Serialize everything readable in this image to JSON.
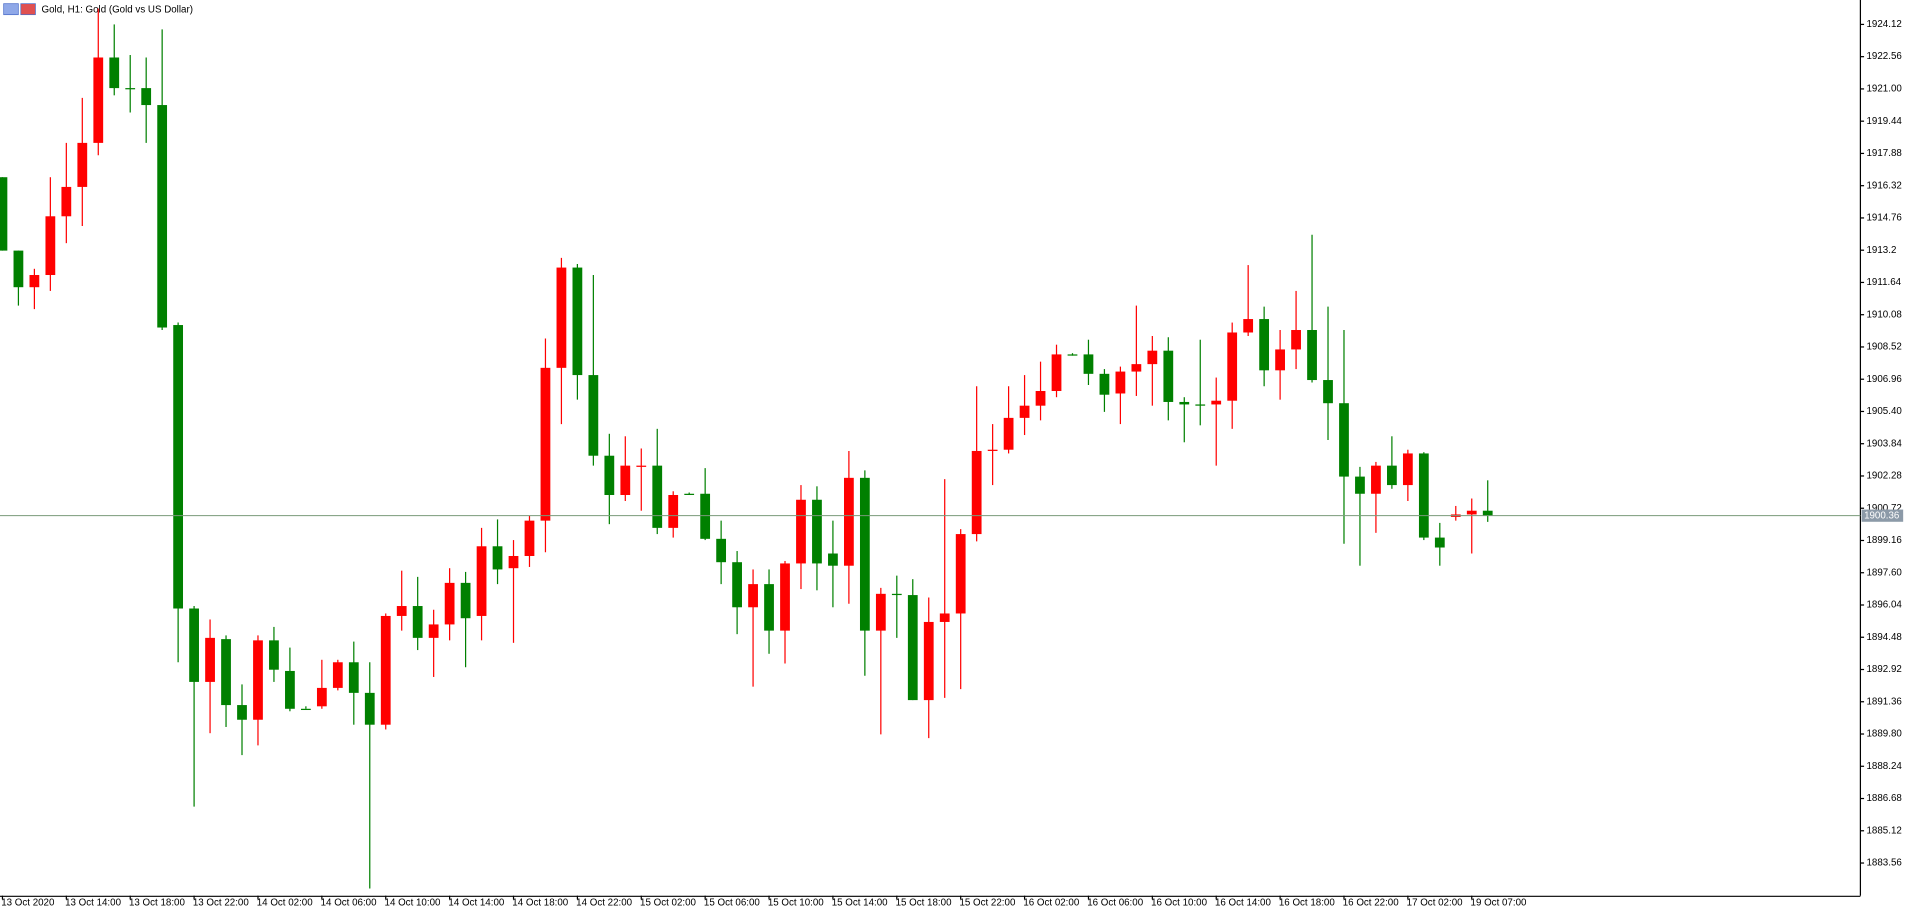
{
  "chart_data": {
    "type": "candlestick",
    "title": "Gold, H1:  Gold (Gold vs US Dollar)",
    "categories": [
      "13 Oct 2020",
      null,
      null,
      null,
      "13 Oct 14:00",
      null,
      null,
      null,
      "13 Oct 18:00",
      null,
      null,
      null,
      "13 Oct 22:00",
      null,
      null,
      null,
      "14 Oct 02:00",
      null,
      null,
      null,
      "14 Oct 06:00",
      null,
      null,
      null,
      "14 Oct 10:00",
      null,
      null,
      null,
      "14 Oct 14:00",
      null,
      null,
      null,
      "14 Oct 18:00",
      null,
      null,
      null,
      "14 Oct 22:00",
      null,
      null,
      null,
      "15 Oct 02:00",
      null,
      null,
      null,
      "15 Oct 06:00",
      null,
      null,
      null,
      "15 Oct 10:00",
      null,
      null,
      null,
      "15 Oct 14:00",
      null,
      null,
      null,
      "15 Oct 18:00",
      null,
      null,
      null,
      "15 Oct 22:00",
      null,
      null,
      null,
      "16 Oct 02:00",
      null,
      null,
      null,
      "16 Oct 06:00",
      null,
      null,
      null,
      "16 Oct 10:00",
      null,
      null,
      null,
      "16 Oct 14:00",
      null,
      null,
      null,
      "16 Oct 18:00",
      null,
      null,
      null,
      "16 Oct 22:00",
      null,
      null,
      null,
      "17 Oct 02:00",
      null,
      null,
      null,
      "19 Oct 07:00",
      null
    ],
    "open": [
      1916.73,
      1913.18,
      1911.41,
      1912.0,
      1914.84,
      1916.26,
      1918.39,
      1922.52,
      1921.04,
      1921.04,
      1920.22,
      1909.58,
      1895.87,
      1892.32,
      1894.39,
      1891.2,
      1890.49,
      1894.33,
      1892.85,
      1891.02,
      1891.14,
      1892.03,
      1893.27,
      1891.79,
      1890.25,
      1895.51,
      1895.99,
      1894.45,
      1895.1,
      1897.11,
      1895.51,
      1898.88,
      1897.82,
      1898.41,
      1900.12,
      1907.51,
      1912.36,
      1907.16,
      1903.26,
      1901.36,
      1902.72,
      1902.78,
      1899.77,
      1901.42,
      1901.42,
      1899.24,
      1898.11,
      1895.93,
      1897.05,
      1894.8,
      1898.05,
      1901.13,
      1898.53,
      1897.94,
      1902.19,
      1894.8,
      1896.58,
      1896.52,
      1891.44,
      1895.22,
      1895.63,
      1899.47,
      1903.49,
      1903.55,
      1905.09,
      1905.68,
      1906.39,
      1908.16,
      1908.16,
      1907.22,
      1906.27,
      1907.33,
      1907.69,
      1908.34,
      1905.86,
      1905.74,
      1905.74,
      1905.92,
      1909.22,
      1909.87,
      1907.39,
      1908.4,
      1909.34,
      1906.92,
      1905.8,
      1902.25,
      1901.42,
      1902.78,
      1901.84,
      1903.37,
      1899.3,
      1900.3,
      1900.42,
      1900.6
    ],
    "high": [
      1916.73,
      1913.18,
      1912.3,
      1916.73,
      1918.39,
      1920.57,
      1924.89,
      1924.12,
      1922.64,
      1922.52,
      1923.88,
      1909.7,
      1895.99,
      1895.34,
      1894.57,
      1892.2,
      1894.57,
      1894.98,
      1893.98,
      1891.14,
      1893.39,
      1893.39,
      1894.27,
      1893.27,
      1895.63,
      1897.7,
      1897.4,
      1895.81,
      1897.82,
      1897.64,
      1899.77,
      1900.18,
      1899.18,
      1900.36,
      1908.93,
      1912.83,
      1912.53,
      1912.0,
      1904.32,
      1904.2,
      1903.61,
      1904.56,
      1901.54,
      1901.48,
      1902.66,
      1900.12,
      1898.65,
      1897.76,
      1897.76,
      1898.17,
      1901.84,
      1901.78,
      1900.12,
      1903.49,
      1902.55,
      1896.87,
      1897.46,
      1897.29,
      1896.4,
      1902.13,
      1899.71,
      1906.62,
      1904.79,
      1906.62,
      1907.16,
      1907.81,
      1908.63,
      1908.22,
      1908.87,
      1907.45,
      1907.57,
      1910.52,
      1909.05,
      1908.99,
      1906.09,
      1908.87,
      1907.04,
      1909.7,
      1912.48,
      1910.47,
      1909.34,
      1911.23,
      1913.95,
      1910.47,
      1909.34,
      1902.72,
      1902.96,
      1904.2,
      1903.55,
      1903.43,
      1900.01,
      1900.83,
      1901.19,
      1902.07
    ],
    "low": [
      1913.18,
      1910.52,
      1910.35,
      1911.23,
      1913.54,
      1914.37,
      1917.79,
      1920.69,
      1919.86,
      1918.39,
      1909.34,
      1893.27,
      1886.29,
      1889.84,
      1890.14,
      1888.78,
      1889.25,
      1892.32,
      1890.9,
      1891.02,
      1891.02,
      1891.91,
      1890.25,
      1882.33,
      1890.02,
      1894.8,
      1893.86,
      1892.56,
      1894.33,
      1893.03,
      1894.33,
      1897.05,
      1894.21,
      1897.88,
      1898.59,
      1904.79,
      1905.97,
      1902.78,
      1899.95,
      1901.07,
      1900.6,
      1899.47,
      1899.3,
      1901.36,
      1899.18,
      1897.05,
      1894.63,
      1892.09,
      1893.68,
      1893.21,
      1896.81,
      1896.75,
      1895.93,
      1896.1,
      1892.62,
      1889.78,
      1894.45,
      1891.44,
      1889.6,
      1891.55,
      1891.97,
      1899.12,
      1901.84,
      1903.37,
      1904.26,
      1904.97,
      1906.09,
      1908.1,
      1906.68,
      1905.38,
      1904.79,
      1906.15,
      1905.68,
      1904.97,
      1903.91,
      1904.73,
      1902.78,
      1904.56,
      1909.05,
      1906.62,
      1905.97,
      1907.45,
      1906.8,
      1904.02,
      1899.0,
      1897.94,
      1899.53,
      1901.66,
      1901.07,
      1899.18,
      1897.94,
      1900.12,
      1898.53,
      1900.06
    ],
    "close": [
      1913.18,
      1911.41,
      1912.0,
      1914.84,
      1916.26,
      1918.39,
      1922.52,
      1921.04,
      1920.99,
      1920.22,
      1909.46,
      1895.87,
      1892.32,
      1894.45,
      1891.2,
      1890.49,
      1894.33,
      1892.91,
      1891.02,
      1891.02,
      1892.03,
      1893.27,
      1891.79,
      1890.25,
      1895.51,
      1895.99,
      1894.45,
      1895.1,
      1897.11,
      1895.4,
      1898.88,
      1897.76,
      1898.41,
      1900.12,
      1907.51,
      1912.36,
      1907.16,
      1903.26,
      1901.36,
      1902.78,
      1902.78,
      1899.77,
      1901.36,
      1901.42,
      1899.24,
      1898.11,
      1895.93,
      1897.05,
      1894.8,
      1898.05,
      1901.13,
      1898.05,
      1897.94,
      1902.19,
      1894.8,
      1896.58,
      1896.52,
      1891.44,
      1895.22,
      1895.63,
      1899.47,
      1903.49,
      1903.55,
      1905.09,
      1905.68,
      1906.39,
      1908.16,
      1908.16,
      1907.22,
      1906.21,
      1907.33,
      1907.69,
      1908.34,
      1905.86,
      1905.74,
      1905.68,
      1905.92,
      1909.22,
      1909.87,
      1907.39,
      1908.4,
      1909.34,
      1906.92,
      1905.8,
      1902.25,
      1901.42,
      1902.78,
      1901.84,
      1903.37,
      1899.3,
      1898.82,
      1900.42,
      1900.6,
      1900.36
    ],
    "up_color": "#ff0000",
    "down_color": "#008000",
    "price_line": 1900.36,
    "ylim": [
      1881.98,
      1925.3
    ],
    "yticks": [
      1924.12,
      1922.56,
      {
        "value": 1921,
        "label": "1921.00"
      },
      1919.44,
      1917.88,
      1916.32,
      1914.76,
      1913.2,
      1911.64,
      1910.08,
      1908.52,
      1906.96,
      {
        "value": 1905.4,
        "label": "1905.40"
      },
      1903.84,
      1902.28,
      1900.72,
      1899.16,
      {
        "value": 1897.6,
        "label": "1897.60"
      },
      1896.04,
      1894.48,
      1892.92,
      1891.36,
      {
        "value": 1889.8,
        "label": "1889.80"
      },
      1888.24,
      1886.68,
      1885.12,
      1883.56
    ]
  }
}
